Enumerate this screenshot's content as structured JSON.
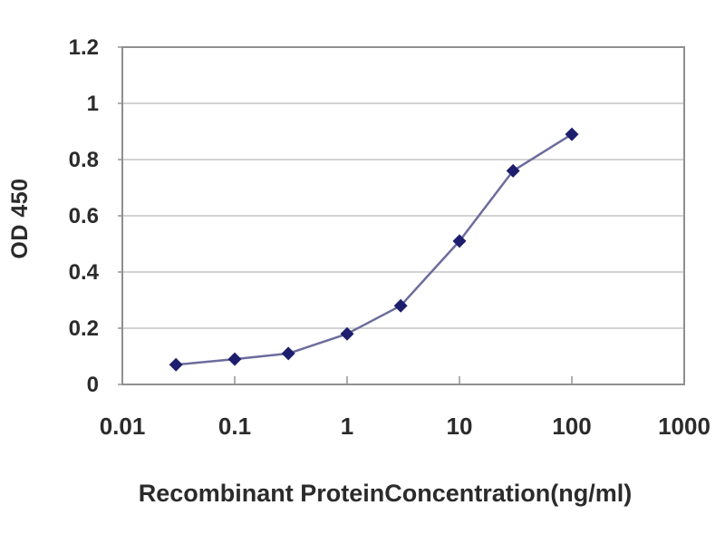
{
  "chart_data": {
    "type": "line",
    "title": "",
    "xlabel": "Recombinant ProteinConcentration(ng/ml)",
    "ylabel": "OD 450",
    "x_scale": "log",
    "x": [
      0.03,
      0.1,
      0.3,
      1,
      3,
      10,
      30,
      100
    ],
    "series": [
      {
        "name": "OD 450",
        "values": [
          0.07,
          0.09,
          0.11,
          0.18,
          0.28,
          0.51,
          0.76,
          0.89
        ]
      }
    ],
    "xlim": [
      0.01,
      1000
    ],
    "ylim": [
      0,
      1.2
    ],
    "x_ticks": {
      "values": [
        0.01,
        0.1,
        1,
        10,
        100,
        1000
      ],
      "labels": [
        "0.01",
        "0.1",
        "1",
        "10",
        "100",
        "1000"
      ]
    },
    "y_ticks": {
      "values": [
        0,
        0.2,
        0.4,
        0.6,
        0.8,
        1,
        1.2
      ],
      "labels": [
        "0",
        "0.2",
        "0.4",
        "0.6",
        "0.8",
        "1",
        "1.2"
      ]
    },
    "grid": true,
    "legend": false,
    "marker": "diamond",
    "colors": {
      "line": "#6c6c9c",
      "marker": "#1e1e6e",
      "grid": "#c3c3c3",
      "border": "#8f8f8f",
      "tick": "#9a9a9a",
      "text": "#2b2b2b",
      "background": "#ffffff"
    }
  }
}
